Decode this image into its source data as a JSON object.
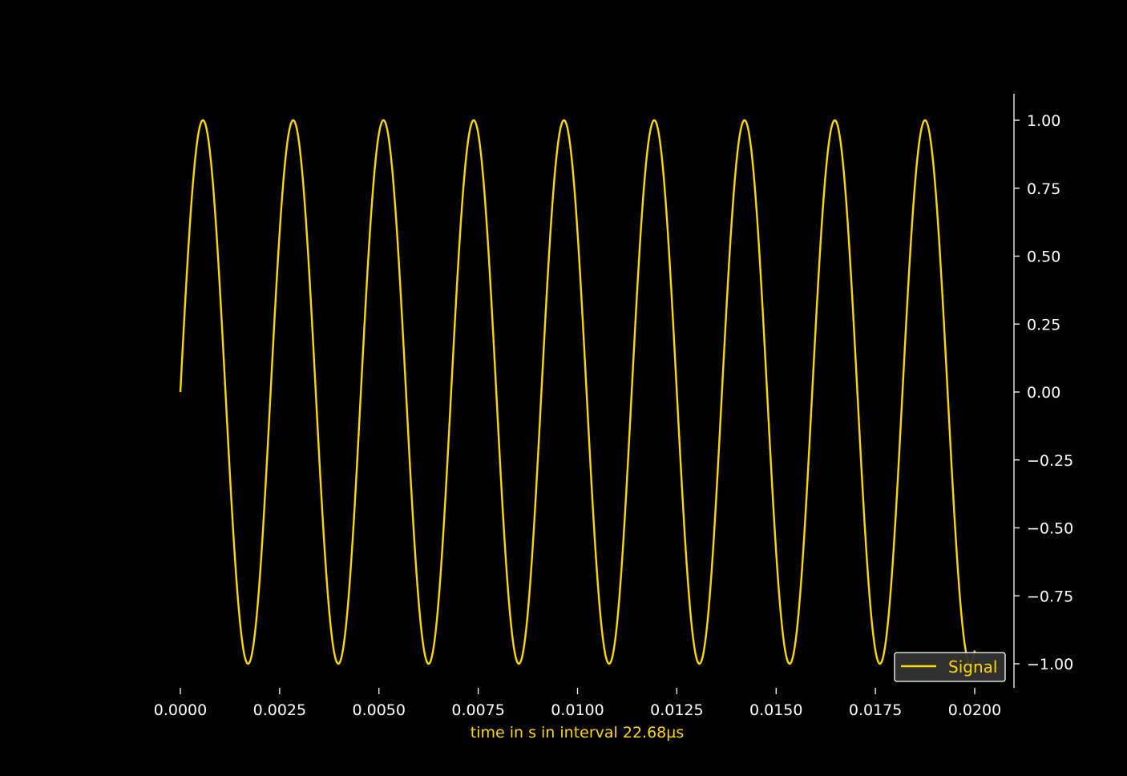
{
  "chart_data": {
    "type": "line",
    "title": "",
    "xlabel": "time in s in interval 22.68µs",
    "ylabel": "",
    "xlim": [
      0.0,
      0.02
    ],
    "ylim": [
      -1.0,
      1.0
    ],
    "grid": false,
    "y_axis_side": "right",
    "legend_location": "lower right",
    "x_ticks": [
      "0.0000",
      "0.0025",
      "0.0050",
      "0.0075",
      "0.0100",
      "0.0125",
      "0.0150",
      "0.0175",
      "0.0200"
    ],
    "y_ticks": [
      "1.00",
      "0.75",
      "0.50",
      "0.25",
      "0.00",
      "−0.25",
      "−0.50",
      "−0.75",
      "−1.00"
    ],
    "series": [
      {
        "name": "Signal",
        "color": "#ffd700",
        "function": "sin",
        "amplitude": 1.0,
        "frequency_hz": 440,
        "phase": 0,
        "x_start": 0.0,
        "x_end": 0.02,
        "sample_interval_s": 2.268e-05
      }
    ]
  },
  "colors": {
    "background": "#000000",
    "axis": "#ffffff",
    "signal": "#ffd700",
    "legend_bg": "#333333",
    "legend_border": "#ffffff"
  }
}
